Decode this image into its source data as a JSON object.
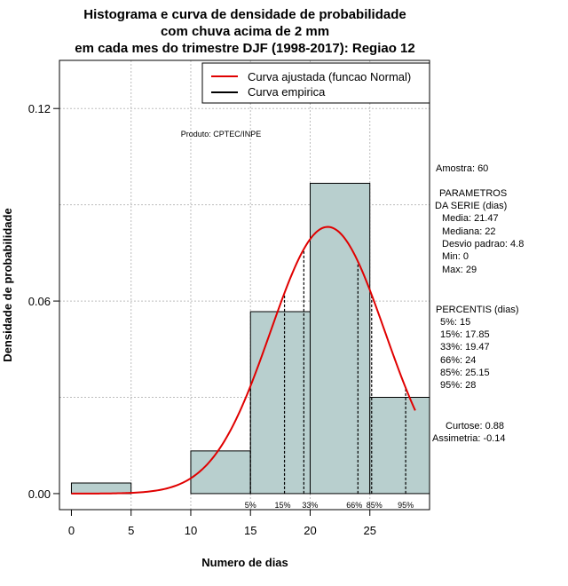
{
  "chart_data": {
    "type": "histogram",
    "title": [
      "Histograma e curva de densidade de probabilidade",
      "com chuva acima de 2 mm",
      "em cada mes do trimestre DJF (1998-2017): Regiao 12"
    ],
    "xlabel": "Numero de dias",
    "ylabel": "Densidade de probabilidade",
    "xlim": [
      -1,
      30
    ],
    "ylim": [
      -0.005,
      0.135
    ],
    "x_ticks": [
      0,
      5,
      10,
      15,
      20,
      25
    ],
    "x_tick_labels": [
      "0",
      "5",
      "10",
      "15",
      "20",
      "25"
    ],
    "y_ticks": [
      0.0,
      0.06,
      0.12
    ],
    "y_tick_labels": [
      "0.00",
      "0.06",
      "0.12"
    ],
    "grid_x": [
      5,
      10,
      15,
      20,
      25
    ],
    "grid_y": [
      0.03,
      0.06,
      0.09,
      0.12
    ],
    "bins": [
      {
        "from": 0,
        "to": 5,
        "density": 0.0033
      },
      {
        "from": 5,
        "to": 10,
        "density": 0.0
      },
      {
        "from": 10,
        "to": 15,
        "density": 0.0133
      },
      {
        "from": 15,
        "to": 20,
        "density": 0.0567
      },
      {
        "from": 20,
        "to": 25,
        "density": 0.0967
      },
      {
        "from": 25,
        "to": 30,
        "density": 0.03
      }
    ],
    "fitted_curve": {
      "name": "Curva ajustada (funcao Normal)",
      "distribution": "normal",
      "mean": 21.47,
      "sd": 4.8,
      "x_range": [
        0,
        28.8
      ],
      "color": "#e00000"
    },
    "empirical_curve": {
      "name": "Curva empirica",
      "color": "#000000"
    },
    "percentile_lines": [
      {
        "x": 15,
        "label": "5%"
      },
      {
        "x": 17.85,
        "label": "15%"
      },
      {
        "x": 19.47,
        "label": "33%"
      },
      {
        "x": 24,
        "label": "66%"
      },
      {
        "x": 25.15,
        "label": "85%"
      },
      {
        "x": 28,
        "label": "95%"
      }
    ],
    "legend_position": "top-right",
    "bar_color": "#b8cfce"
  },
  "annotation": "Produto: CPTEC/INPE",
  "side_panel": {
    "sample": "Amostra: 60",
    "params_title": [
      "PARAMETROS",
      "DA SERIE (dias)"
    ],
    "params": [
      "Media: 21.47",
      "Mediana: 22",
      "Desvio padrao: 4.8",
      "Min: 0",
      "Max: 29"
    ],
    "percentiles_title": "PERCENTIS (dias)",
    "percentiles": [
      "5%: 15",
      "15%: 17.85",
      "33%: 19.47",
      "66%: 24",
      "85%: 25.15",
      "95%: 28"
    ],
    "kurtosis": "Curtose: 0.88",
    "skewness": "Assimetria: -0.14"
  }
}
